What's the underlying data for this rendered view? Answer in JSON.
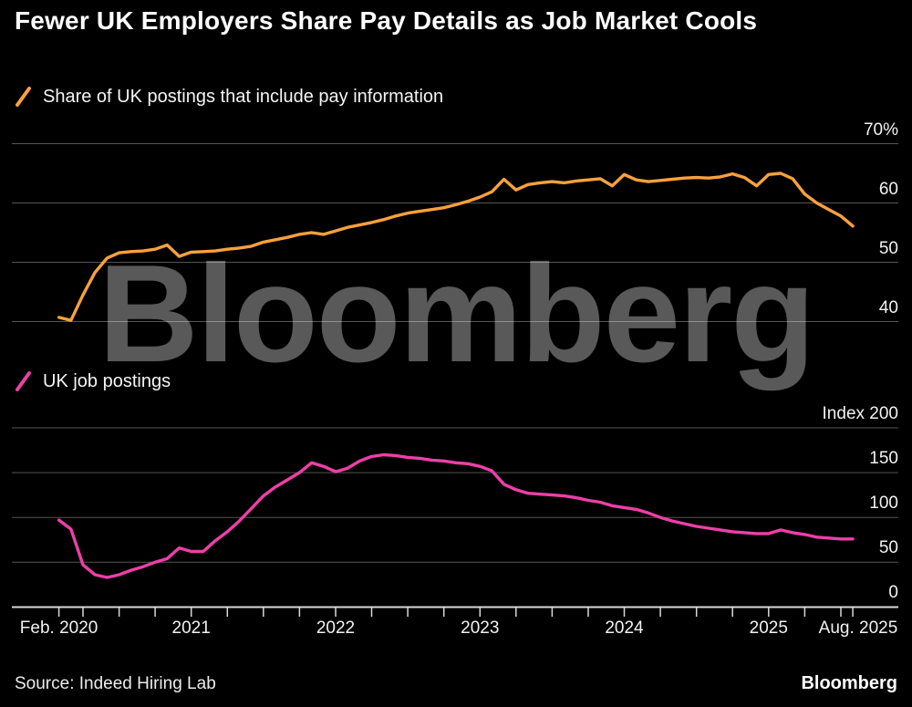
{
  "title": "Fewer UK Employers Share Pay Details as Job Market Cools",
  "watermark": "Bloomberg",
  "legend_top": "Share of UK postings that include pay information",
  "legend_bottom": "UK job postings",
  "footer": {
    "source": "Source: Indeed Hiring Lab",
    "brand": "Bloomberg"
  },
  "colors": {
    "background": "#000000",
    "orange": "#f9a13b",
    "pink": "#ee3fa8",
    "grid": "rgba(255,255,255,0.33)",
    "axis": "#d9d9d9",
    "label_text": "#f2f2f2",
    "watermark": "#595959"
  },
  "x_axis": {
    "labels": [
      "Feb. 2020",
      "2021",
      "2022",
      "2023",
      "2024",
      "2025",
      "Aug. 2025"
    ],
    "label_months": [
      0,
      11,
      23,
      35,
      47,
      59,
      66
    ]
  },
  "chart_data": [
    {
      "type": "line",
      "legend": "Share of UK postings that include pay information",
      "color_key": "orange",
      "x_start": "Feb 2020",
      "x_end": "Aug 2025",
      "frequency": "monthly",
      "unit": "percent",
      "y_ticks": [
        "70%",
        "60",
        "50",
        "40"
      ],
      "y_tick_values": [
        70,
        60,
        50,
        40
      ],
      "ylim": [
        38,
        71
      ],
      "grid": true,
      "legend_position": "top-left",
      "values": [
        40.7,
        40.2,
        44.5,
        48.3,
        50.7,
        51.6,
        51.8,
        51.9,
        52.2,
        52.9,
        51.0,
        51.7,
        51.8,
        51.9,
        52.2,
        52.4,
        52.7,
        53.4,
        53.8,
        54.2,
        54.7,
        55.0,
        54.7,
        55.3,
        55.9,
        56.3,
        56.7,
        57.2,
        57.8,
        58.3,
        58.6,
        58.9,
        59.2,
        59.7,
        60.3,
        61.0,
        61.9,
        64.0,
        62.2,
        63.1,
        63.4,
        63.6,
        63.4,
        63.7,
        63.9,
        64.1,
        62.9,
        64.8,
        63.9,
        63.6,
        63.8,
        64.0,
        64.2,
        64.3,
        64.2,
        64.4,
        64.9,
        64.3,
        62.9,
        64.8,
        65.0,
        64.1,
        61.5,
        60.0,
        58.9,
        57.8,
        56.1
      ]
    },
    {
      "type": "line",
      "legend": "UK job postings",
      "color_key": "pink",
      "x_start": "Feb 2020",
      "x_end": "Aug 2025",
      "frequency": "monthly",
      "unit": "index",
      "y_ticks": [
        "Index 200",
        "150",
        "100",
        "50",
        "0"
      ],
      "y_tick_values": [
        200,
        150,
        100,
        50,
        0
      ],
      "ylim": [
        0,
        205
      ],
      "grid": true,
      "legend_position": "top-left",
      "values": [
        97,
        87,
        47,
        36,
        33,
        36,
        41,
        45,
        50,
        54,
        66,
        62,
        62,
        74,
        84,
        96,
        110,
        124,
        134,
        142,
        150,
        161,
        157,
        151,
        155,
        163,
        168,
        170,
        169,
        167,
        166,
        164,
        163,
        161,
        160,
        157,
        152,
        137,
        131,
        127,
        126,
        125,
        124,
        122,
        119,
        117,
        113,
        111,
        109,
        105,
        100,
        96,
        93,
        90,
        88,
        86,
        84,
        83,
        82,
        82,
        86,
        83,
        81,
        78,
        77,
        76,
        76
      ]
    }
  ]
}
